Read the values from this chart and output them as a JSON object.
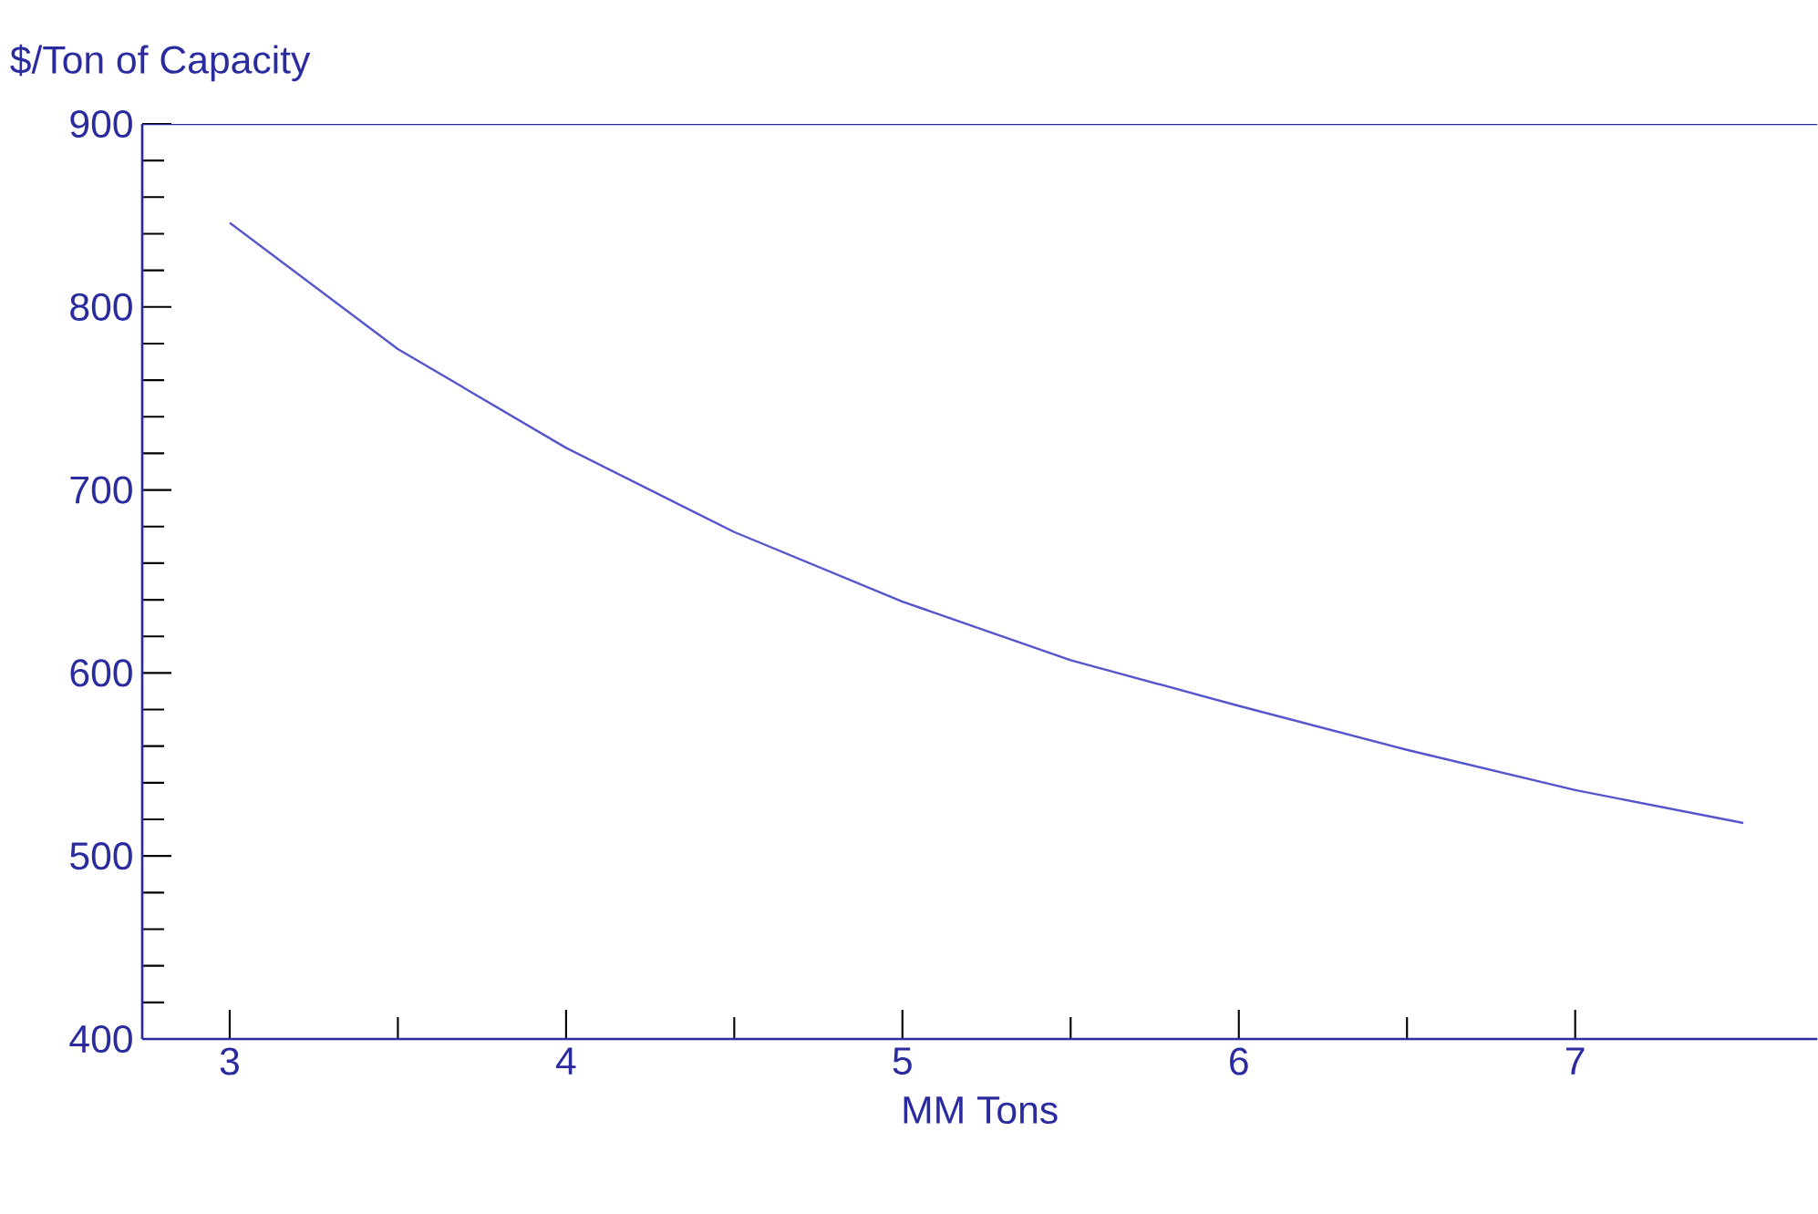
{
  "chart_data": {
    "type": "line",
    "xlabel": "MM Tons",
    "ylabel": "$/Ton of Capacity",
    "x": [
      3,
      3.5,
      4,
      4.5,
      5,
      5.5,
      6,
      6.5,
      7,
      7.5
    ],
    "values": [
      846,
      777,
      723,
      677,
      639,
      607,
      582,
      558,
      536,
      518
    ],
    "color": "#5555cc",
    "xlim": [
      2.74,
      7.72
    ],
    "ylim": [
      400,
      900
    ],
    "xticks": [
      3,
      4,
      5,
      6,
      7
    ],
    "yticks": [
      400,
      500,
      600,
      700,
      800,
      900
    ]
  }
}
